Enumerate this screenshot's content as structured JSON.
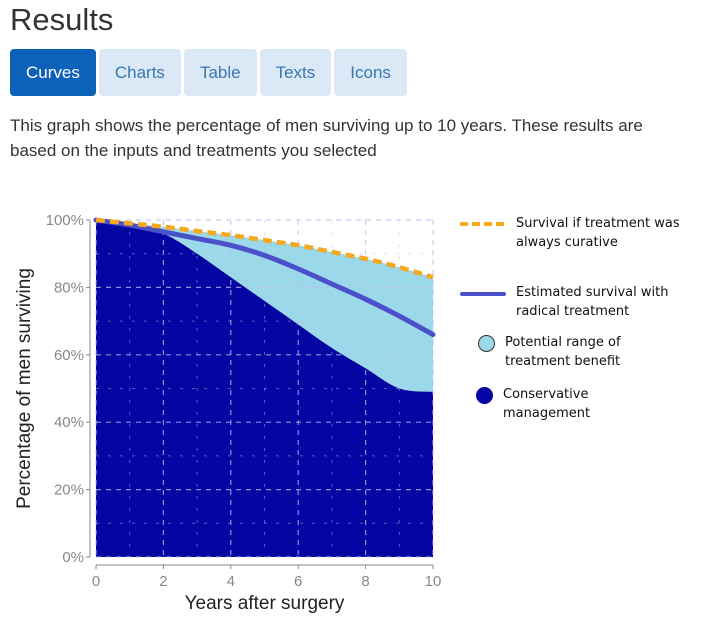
{
  "header": {
    "title": "Results"
  },
  "tabs": [
    {
      "label": "Curves",
      "active": true
    },
    {
      "label": "Charts",
      "active": false
    },
    {
      "label": "Table",
      "active": false
    },
    {
      "label": "Texts",
      "active": false
    },
    {
      "label": "Icons",
      "active": false
    }
  ],
  "description": "This graph shows the percentage of men surviving up to 10 years. These results are based on the inputs and treatments you selected",
  "colors": {
    "curative": "#f5a91e",
    "radical": "#4a50c8",
    "benefit_range": "#9bd8ea",
    "conservative": "#0505a3",
    "tab_active": "#0c61b8",
    "tab_inactive": "#dbe9f7"
  },
  "chart_data": {
    "type": "area",
    "xlabel": "Years after surgery",
    "ylabel": "Percentage of men surviving",
    "xlim": [
      0,
      10
    ],
    "ylim": [
      0,
      100
    ],
    "x_ticks": [
      "0",
      "2",
      "4",
      "6",
      "8",
      "10"
    ],
    "y_ticks": [
      "0%",
      "20%",
      "40%",
      "60%",
      "80%",
      "100%"
    ],
    "grid": true,
    "legend_position": "right",
    "x": [
      0,
      1,
      2,
      3,
      4,
      5,
      6,
      7,
      8,
      9,
      10
    ],
    "series": [
      {
        "name": "Survival if treatment was always curative",
        "style": "dashed-line",
        "values": [
          100,
          99,
          98,
          96.7,
          95.5,
          94,
          92.5,
          90.5,
          88.5,
          86,
          83
        ]
      },
      {
        "name": "Estimated survival with radical treatment",
        "style": "line",
        "values": [
          100,
          98.5,
          96.5,
          94.5,
          92.5,
          89.5,
          85.5,
          81,
          76.5,
          71.5,
          66
        ]
      },
      {
        "name": "Potential range of treatment benefit",
        "style": "band",
        "values": [
          100,
          99,
          98,
          96.7,
          95.5,
          94,
          92.5,
          90.5,
          88.5,
          86,
          83
        ]
      },
      {
        "name": "Conservative management",
        "style": "area",
        "values": [
          100,
          98.5,
          96,
          90,
          83,
          76,
          69,
          62,
          56,
          50,
          49
        ]
      }
    ]
  }
}
